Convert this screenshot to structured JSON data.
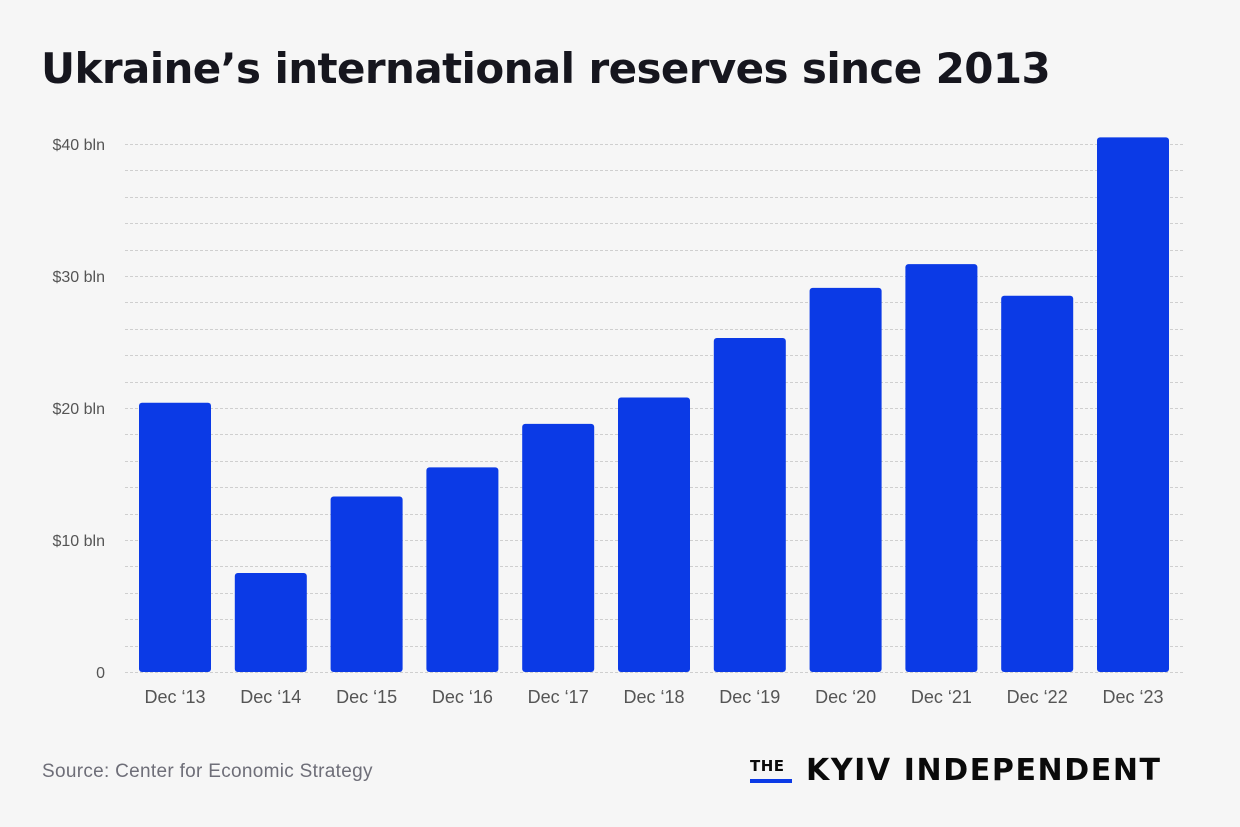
{
  "title": "Ukraine’s international reserves since 2013",
  "source": "Source: Center for Economic Strategy",
  "logo": {
    "the": "THE",
    "name": "KYIV INDEPENDENT",
    "accent_color": "#0b3ae6"
  },
  "chart_data": {
    "type": "bar",
    "title": "Ukraine’s international reserves since 2013",
    "xlabel": "",
    "ylabel": "",
    "categories": [
      "Dec ‘13",
      "Dec ‘14",
      "Dec ‘15",
      "Dec ‘16",
      "Dec ‘17",
      "Dec ‘18",
      "Dec ‘19",
      "Dec ‘20",
      "Dec ‘21",
      "Dec ‘22",
      "Dec ‘23"
    ],
    "values": [
      20.4,
      7.5,
      13.3,
      15.5,
      18.8,
      20.8,
      25.3,
      29.1,
      30.9,
      28.5,
      40.5
    ],
    "unit": "USD billion",
    "ylim": [
      0,
      40
    ],
    "yticks": [
      {
        "value": 0,
        "label": "0"
      },
      {
        "value": 10,
        "label": "$10 bln"
      },
      {
        "value": 20,
        "label": "$20 bln"
      },
      {
        "value": 30,
        "label": "$30 bln"
      },
      {
        "value": 40,
        "label": "$40 bln"
      }
    ],
    "minor_grid_step": 2,
    "grid": true,
    "grid_style": "dashed",
    "legend": "none",
    "bar_color": "#0b3ae6"
  }
}
